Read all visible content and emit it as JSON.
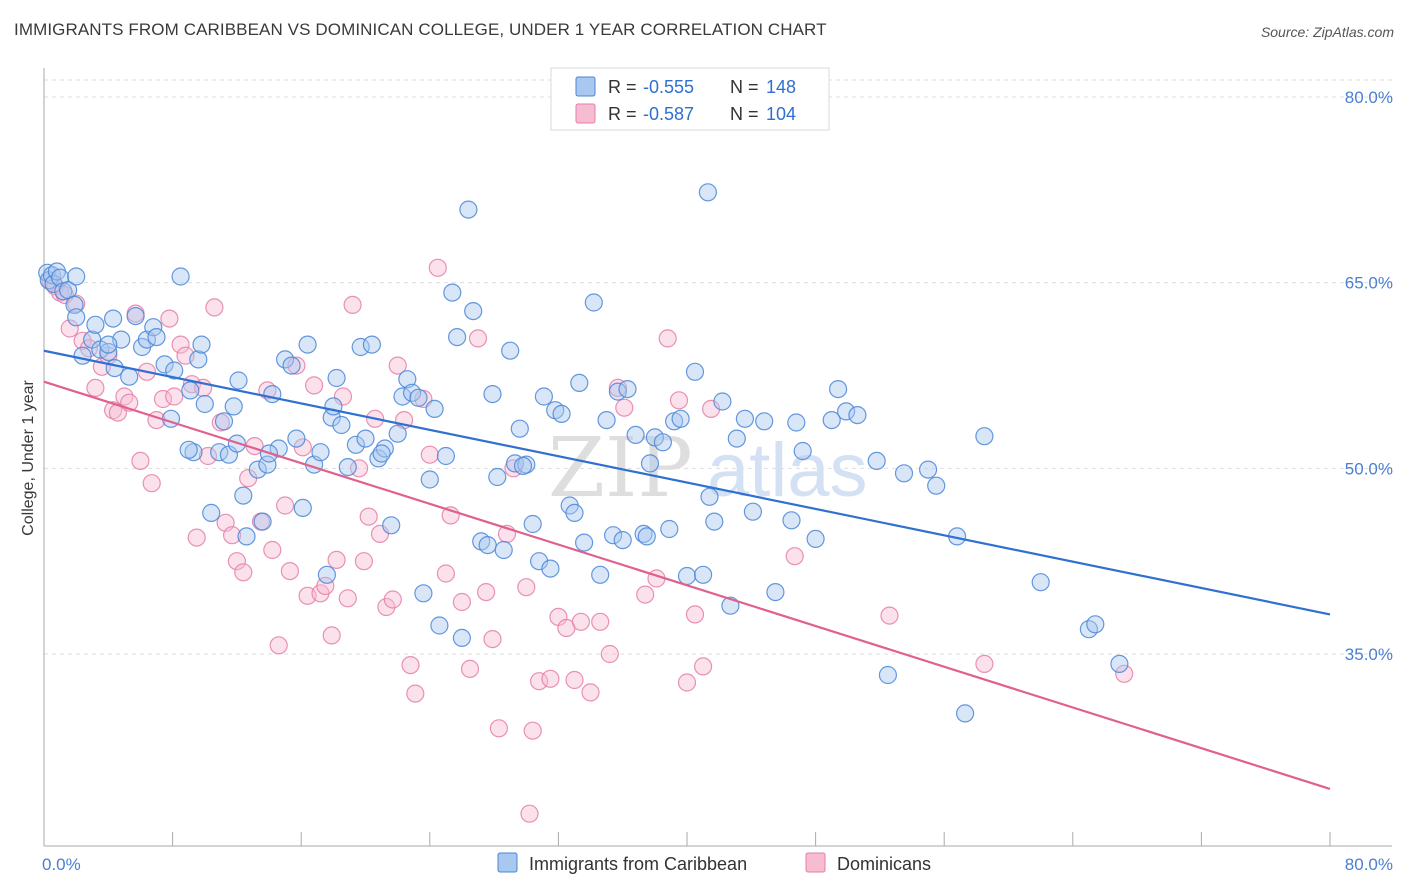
{
  "header": {
    "title": "IMMIGRANTS FROM CARIBBEAN VS DOMINICAN COLLEGE, UNDER 1 YEAR CORRELATION CHART",
    "source": "Source: ZipAtlas.com"
  },
  "watermark": {
    "part1": "ZIP",
    "part2": "atlas"
  },
  "colors": {
    "blue": "#4a86d8",
    "blue_fill": "#a9c8f0",
    "blue_line": "#3070d0",
    "pink": "#e57fa6",
    "pink_fill": "#f6bdd2",
    "pink_line": "#e0608e",
    "grid": "#dddddd",
    "tick_label": "#4a7fd4"
  },
  "legend": {
    "rows": [
      {
        "r_label": "R =",
        "r_value": "-0.555",
        "n_label": "N =",
        "n_value": "148"
      },
      {
        "r_label": "R =",
        "r_value": "-0.587",
        "n_label": "N =",
        "n_value": "104"
      }
    ]
  },
  "bottom_legend": [
    "Immigrants from Caribbean",
    "Dominicans"
  ],
  "chart_data": {
    "type": "scatter",
    "title": "IMMIGRANTS FROM CARIBBEAN VS DOMINICAN COLLEGE, UNDER 1 YEAR CORRELATION CHART",
    "xlabel": "",
    "ylabel": "College, Under 1 year",
    "xlim": [
      0,
      80
    ],
    "ylim": [
      20,
      82
    ],
    "x_tick_labels": [
      "0.0%",
      "80.0%"
    ],
    "y_ticks": [
      35,
      50,
      65,
      80
    ],
    "y_tick_labels": [
      "35.0%",
      "50.0%",
      "65.0%",
      "80.0%"
    ],
    "grid": true,
    "legend_position": "top-center",
    "series": [
      {
        "name": "Immigrants from Caribbean",
        "r": -0.555,
        "n": 148,
        "trend": {
          "x": [
            0,
            80
          ],
          "y": [
            59.5,
            38.2
          ]
        },
        "points": [
          [
            0.2,
            65.8
          ],
          [
            0.3,
            65.2
          ],
          [
            0.5,
            65.6
          ],
          [
            0.6,
            64.9
          ],
          [
            0.8,
            65.9
          ],
          [
            1.0,
            65.4
          ],
          [
            1.2,
            64.3
          ],
          [
            1.5,
            64.4
          ],
          [
            1.9,
            63.2
          ],
          [
            2.0,
            62.2
          ],
          [
            2.4,
            59.1
          ],
          [
            3.0,
            60.4
          ],
          [
            3.2,
            61.6
          ],
          [
            3.5,
            59.6
          ],
          [
            4.0,
            59.4
          ],
          [
            4.3,
            62.1
          ],
          [
            4.4,
            58.1
          ],
          [
            4.8,
            60.4
          ],
          [
            5.3,
            57.4
          ],
          [
            5.7,
            62.3
          ],
          [
            6.1,
            59.8
          ],
          [
            6.4,
            60.4
          ],
          [
            6.8,
            61.4
          ],
          [
            7.0,
            60.6
          ],
          [
            7.5,
            58.4
          ],
          [
            7.9,
            54.0
          ],
          [
            8.1,
            57.9
          ],
          [
            8.5,
            65.5
          ],
          [
            9.1,
            56.3
          ],
          [
            9.3,
            51.3
          ],
          [
            9.6,
            58.8
          ],
          [
            9.8,
            60.0
          ],
          [
            10.0,
            55.2
          ],
          [
            10.4,
            46.4
          ],
          [
            10.9,
            51.3
          ],
          [
            11.2,
            53.8
          ],
          [
            11.5,
            51.1
          ],
          [
            11.8,
            55.0
          ],
          [
            12.1,
            57.1
          ],
          [
            12.4,
            47.8
          ],
          [
            12.6,
            44.5
          ],
          [
            13.3,
            49.9
          ],
          [
            13.6,
            45.7
          ],
          [
            13.9,
            50.3
          ],
          [
            14.2,
            56.0
          ],
          [
            14.6,
            51.6
          ],
          [
            15.0,
            58.8
          ],
          [
            15.4,
            58.3
          ],
          [
            15.7,
            52.4
          ],
          [
            16.1,
            46.8
          ],
          [
            16.4,
            60.0
          ],
          [
            16.8,
            50.3
          ],
          [
            17.2,
            51.3
          ],
          [
            17.6,
            41.4
          ],
          [
            17.9,
            54.1
          ],
          [
            18.2,
            57.3
          ],
          [
            18.5,
            53.5
          ],
          [
            18.9,
            50.1
          ],
          [
            19.4,
            51.9
          ],
          [
            19.7,
            59.8
          ],
          [
            20.0,
            52.4
          ],
          [
            20.4,
            60.0
          ],
          [
            20.8,
            50.8
          ],
          [
            21.2,
            51.6
          ],
          [
            21.6,
            45.4
          ],
          [
            22.0,
            52.8
          ],
          [
            22.3,
            55.8
          ],
          [
            22.6,
            57.2
          ],
          [
            22.9,
            56.1
          ],
          [
            23.3,
            55.7
          ],
          [
            23.6,
            39.9
          ],
          [
            24.0,
            49.1
          ],
          [
            24.3,
            54.8
          ],
          [
            24.6,
            37.3
          ],
          [
            25.0,
            51.0
          ],
          [
            25.4,
            64.2
          ],
          [
            25.7,
            60.6
          ],
          [
            26.0,
            36.3
          ],
          [
            26.4,
            70.9
          ],
          [
            26.7,
            62.7
          ],
          [
            27.2,
            44.1
          ],
          [
            27.6,
            43.8
          ],
          [
            27.9,
            56.0
          ],
          [
            28.2,
            49.3
          ],
          [
            28.6,
            43.4
          ],
          [
            29.0,
            59.5
          ],
          [
            29.3,
            50.4
          ],
          [
            29.6,
            53.2
          ],
          [
            30.0,
            50.3
          ],
          [
            30.4,
            45.5
          ],
          [
            30.8,
            42.5
          ],
          [
            31.1,
            55.8
          ],
          [
            31.5,
            41.9
          ],
          [
            31.8,
            54.7
          ],
          [
            32.2,
            54.4
          ],
          [
            32.7,
            47.0
          ],
          [
            33.0,
            46.4
          ],
          [
            33.3,
            56.9
          ],
          [
            33.6,
            44.0
          ],
          [
            34.2,
            63.4
          ],
          [
            34.6,
            41.4
          ],
          [
            35.0,
            53.9
          ],
          [
            35.4,
            44.6
          ],
          [
            35.7,
            56.2
          ],
          [
            36.0,
            44.2
          ],
          [
            36.3,
            56.4
          ],
          [
            36.8,
            52.7
          ],
          [
            37.3,
            44.7
          ],
          [
            37.7,
            50.4
          ],
          [
            38.0,
            52.5
          ],
          [
            38.5,
            52.1
          ],
          [
            38.9,
            45.1
          ],
          [
            39.2,
            53.8
          ],
          [
            39.6,
            54.0
          ],
          [
            40.0,
            41.3
          ],
          [
            40.5,
            57.8
          ],
          [
            41.0,
            41.4
          ],
          [
            41.4,
            47.7
          ],
          [
            41.7,
            45.7
          ],
          [
            42.2,
            55.4
          ],
          [
            42.7,
            38.9
          ],
          [
            43.1,
            52.4
          ],
          [
            43.6,
            54.0
          ],
          [
            44.1,
            46.5
          ],
          [
            44.8,
            53.8
          ],
          [
            45.5,
            40.0
          ],
          [
            46.5,
            45.8
          ],
          [
            46.8,
            53.7
          ],
          [
            47.2,
            51.4
          ],
          [
            48.0,
            44.3
          ],
          [
            49.0,
            53.9
          ],
          [
            49.4,
            56.4
          ],
          [
            49.9,
            54.6
          ],
          [
            50.6,
            54.3
          ],
          [
            51.8,
            50.6
          ],
          [
            52.5,
            33.3
          ],
          [
            53.5,
            49.6
          ],
          [
            55.0,
            49.9
          ],
          [
            55.5,
            48.6
          ],
          [
            56.8,
            44.5
          ],
          [
            57.3,
            30.2
          ],
          [
            58.5,
            52.6
          ],
          [
            62.0,
            40.8
          ],
          [
            65.0,
            37.0
          ],
          [
            65.4,
            37.4
          ],
          [
            66.9,
            34.2
          ],
          [
            41.3,
            72.3
          ],
          [
            12.0,
            52.0
          ],
          [
            18.0,
            55.0
          ],
          [
            9.0,
            51.5
          ],
          [
            14.0,
            51.2
          ],
          [
            21.0,
            51.2
          ],
          [
            29.8,
            50.2
          ],
          [
            37.5,
            44.5
          ],
          [
            4.0,
            60.0
          ],
          [
            2.0,
            65.5
          ]
        ]
      },
      {
        "name": "Dominicans",
        "r": -0.587,
        "n": 104,
        "trend": {
          "x": [
            0,
            80
          ],
          "y": [
            57.0,
            24.1
          ]
        },
        "points": [
          [
            0.4,
            65.1
          ],
          [
            0.7,
            64.7
          ],
          [
            1.0,
            64.2
          ],
          [
            1.3,
            64.0
          ],
          [
            1.6,
            61.3
          ],
          [
            2.0,
            63.3
          ],
          [
            2.4,
            60.3
          ],
          [
            2.8,
            59.7
          ],
          [
            3.2,
            56.5
          ],
          [
            3.6,
            58.2
          ],
          [
            4.0,
            59.1
          ],
          [
            4.3,
            54.7
          ],
          [
            4.6,
            54.5
          ],
          [
            5.0,
            55.8
          ],
          [
            5.3,
            55.3
          ],
          [
            5.7,
            62.5
          ],
          [
            6.0,
            50.6
          ],
          [
            6.4,
            57.8
          ],
          [
            6.7,
            48.8
          ],
          [
            7.0,
            53.9
          ],
          [
            7.4,
            55.6
          ],
          [
            7.8,
            62.1
          ],
          [
            8.1,
            55.8
          ],
          [
            8.5,
            60.0
          ],
          [
            8.8,
            59.1
          ],
          [
            9.2,
            56.8
          ],
          [
            9.5,
            44.4
          ],
          [
            9.9,
            56.5
          ],
          [
            10.2,
            51.0
          ],
          [
            10.6,
            63.0
          ],
          [
            11.0,
            53.7
          ],
          [
            11.3,
            45.6
          ],
          [
            11.7,
            44.6
          ],
          [
            12.0,
            42.5
          ],
          [
            12.4,
            41.6
          ],
          [
            12.7,
            49.2
          ],
          [
            13.1,
            51.8
          ],
          [
            13.5,
            45.7
          ],
          [
            13.9,
            56.3
          ],
          [
            14.2,
            43.4
          ],
          [
            14.6,
            35.7
          ],
          [
            15.0,
            47.0
          ],
          [
            15.3,
            41.7
          ],
          [
            15.7,
            58.3
          ],
          [
            16.1,
            51.7
          ],
          [
            16.4,
            39.7
          ],
          [
            16.8,
            56.7
          ],
          [
            17.2,
            39.9
          ],
          [
            17.5,
            40.5
          ],
          [
            17.9,
            36.5
          ],
          [
            18.2,
            42.6
          ],
          [
            18.6,
            55.8
          ],
          [
            18.9,
            39.5
          ],
          [
            19.2,
            63.2
          ],
          [
            19.6,
            50.0
          ],
          [
            19.9,
            42.5
          ],
          [
            20.2,
            46.1
          ],
          [
            20.6,
            54.0
          ],
          [
            20.9,
            44.7
          ],
          [
            21.3,
            38.8
          ],
          [
            21.7,
            39.4
          ],
          [
            22.0,
            58.3
          ],
          [
            22.4,
            53.9
          ],
          [
            22.8,
            34.1
          ],
          [
            23.1,
            31.8
          ],
          [
            23.6,
            55.6
          ],
          [
            24.0,
            51.1
          ],
          [
            24.5,
            66.2
          ],
          [
            25.0,
            41.5
          ],
          [
            25.3,
            46.2
          ],
          [
            26.0,
            39.2
          ],
          [
            26.5,
            33.8
          ],
          [
            27.0,
            60.5
          ],
          [
            27.5,
            40.0
          ],
          [
            27.9,
            36.2
          ],
          [
            28.3,
            29.0
          ],
          [
            28.8,
            44.7
          ],
          [
            29.2,
            50.0
          ],
          [
            30.0,
            40.4
          ],
          [
            30.4,
            28.8
          ],
          [
            30.8,
            32.8
          ],
          [
            31.5,
            33.0
          ],
          [
            32.0,
            38.0
          ],
          [
            32.5,
            37.1
          ],
          [
            33.0,
            32.9
          ],
          [
            33.4,
            37.6
          ],
          [
            34.0,
            31.9
          ],
          [
            34.6,
            37.6
          ],
          [
            35.2,
            35.0
          ],
          [
            35.7,
            56.5
          ],
          [
            36.1,
            54.9
          ],
          [
            37.4,
            39.8
          ],
          [
            38.1,
            41.1
          ],
          [
            38.8,
            60.5
          ],
          [
            39.5,
            55.5
          ],
          [
            40.0,
            32.7
          ],
          [
            40.5,
            38.2
          ],
          [
            41.0,
            34.0
          ],
          [
            41.5,
            54.8
          ],
          [
            46.7,
            42.9
          ],
          [
            52.6,
            38.1
          ],
          [
            58.5,
            34.2
          ],
          [
            67.2,
            33.4
          ],
          [
            30.2,
            22.1
          ]
        ]
      }
    ]
  }
}
